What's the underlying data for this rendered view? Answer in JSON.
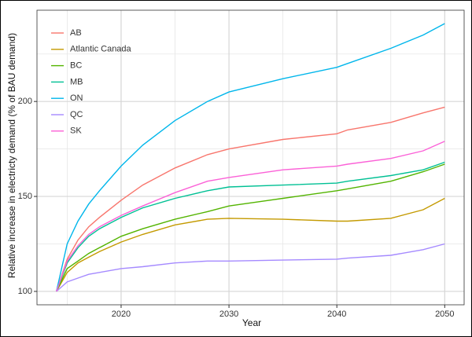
{
  "chart_data": {
    "type": "line",
    "x_label": "Year",
    "y_label": "Relative increase in electricty demand (% of BAU demand)",
    "x": [
      2014,
      2015,
      2016,
      2017,
      2018,
      2020,
      2022,
      2025,
      2028,
      2030,
      2035,
      2040,
      2041,
      2045,
      2048,
      2050
    ],
    "series": [
      {
        "name": "AB",
        "color": "#F8766D",
        "values": [
          100,
          117,
          127,
          134,
          139,
          148,
          156,
          165,
          172,
          175,
          180,
          183,
          185,
          189,
          194,
          197
        ]
      },
      {
        "name": "Atlantic Canada",
        "color": "#C49A00",
        "values": [
          100,
          110,
          115,
          118,
          121,
          126,
          130,
          135,
          138,
          138.5,
          138,
          137,
          137,
          138.5,
          143,
          149
        ]
      },
      {
        "name": "BC",
        "color": "#53B400",
        "values": [
          100,
          112,
          116,
          120,
          123,
          129,
          133,
          138,
          142,
          145,
          149,
          153,
          154,
          158,
          163,
          167
        ]
      },
      {
        "name": "MB",
        "color": "#00C094",
        "values": [
          100,
          115,
          123,
          129,
          133,
          139,
          144,
          149,
          153,
          155,
          156,
          157,
          158,
          161,
          164,
          168
        ]
      },
      {
        "name": "ON",
        "color": "#00B6EB",
        "values": [
          100,
          125,
          137,
          146,
          153,
          166,
          177,
          190,
          200,
          205,
          212,
          218,
          220,
          228,
          235,
          241
        ]
      },
      {
        "name": "QC",
        "color": "#A58AFF",
        "values": [
          100,
          105,
          107,
          109,
          110,
          112,
          113,
          115,
          116,
          116,
          116.5,
          117,
          117.5,
          119,
          122,
          125
        ]
      },
      {
        "name": "SK",
        "color": "#FB61D7",
        "values": [
          100,
          116,
          124,
          130,
          134,
          140,
          145,
          152,
          158,
          160,
          164,
          166,
          167,
          170,
          174,
          179
        ]
      }
    ],
    "xlim": [
      2012.2,
      2051.8
    ],
    "xticks": [
      2020,
      2030,
      2040,
      2050
    ],
    "x_minor_ticks": [
      2015,
      2025,
      2035,
      2045
    ],
    "ylim": [
      92.95,
      248.05
    ],
    "yticks": [
      100,
      150,
      200
    ],
    "y_minor_ticks": [
      125,
      175,
      225
    ],
    "grid": true,
    "legend": "top-left"
  }
}
